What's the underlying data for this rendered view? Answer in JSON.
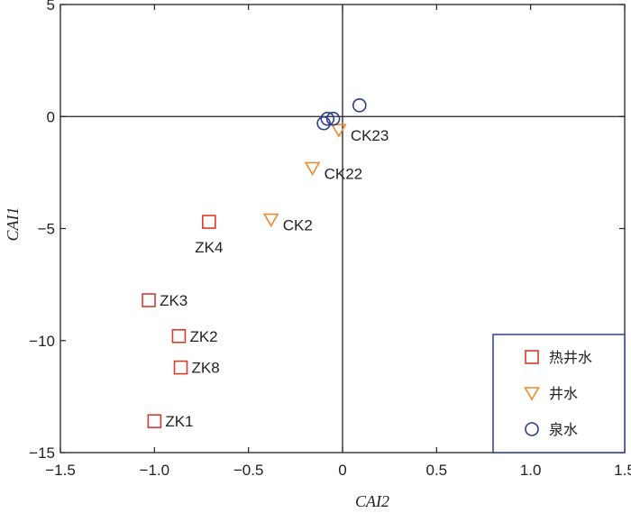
{
  "chart_data": {
    "type": "scatter",
    "xlabel": "CAI2",
    "ylabel": "CAI1",
    "xlim": [
      -1.5,
      1.5
    ],
    "ylim": [
      -15,
      5
    ],
    "xticks": [
      -1.5,
      -1.0,
      -0.5,
      0.0,
      0.5,
      1.0,
      1.5
    ],
    "xtick_labels": [
      "−1.5",
      "−1.0",
      "−0.5",
      "0",
      "0.5",
      "1.0",
      "1.5"
    ],
    "yticks": [
      5,
      0,
      -5,
      -10,
      -15
    ],
    "ytick_labels": [
      "5",
      "0",
      "−5",
      "−10",
      "−15"
    ],
    "grid": false,
    "reference_lines": {
      "x": 0,
      "y": 0
    },
    "legend_position": "bottom-right",
    "series": [
      {
        "name": "热井水",
        "marker": "square",
        "color": "#d93a2b",
        "points": [
          {
            "label": "ZK4",
            "x": -0.71,
            "y": -4.7
          },
          {
            "label": "ZK3",
            "x": -1.03,
            "y": -8.2
          },
          {
            "label": "ZK2",
            "x": -0.87,
            "y": -9.8
          },
          {
            "label": "ZK8",
            "x": -0.86,
            "y": -11.2
          },
          {
            "label": "ZK1",
            "x": -1.0,
            "y": -13.6
          }
        ]
      },
      {
        "name": "井水",
        "marker": "triangle-down",
        "color": "#ee8a2b",
        "points": [
          {
            "label": "CK23",
            "x": -0.02,
            "y": -0.6
          },
          {
            "label": "CK22",
            "x": -0.16,
            "y": -2.3
          },
          {
            "label": "CK2",
            "x": -0.38,
            "y": -4.6
          }
        ]
      },
      {
        "name": "泉水",
        "marker": "circle",
        "color": "#2e3d8f",
        "points": [
          {
            "label": "",
            "x": -0.1,
            "y": -0.3
          },
          {
            "label": "",
            "x": -0.08,
            "y": -0.1
          },
          {
            "label": "",
            "x": -0.05,
            "y": -0.1
          },
          {
            "label": "",
            "x": 0.09,
            "y": 0.5
          }
        ]
      }
    ]
  }
}
